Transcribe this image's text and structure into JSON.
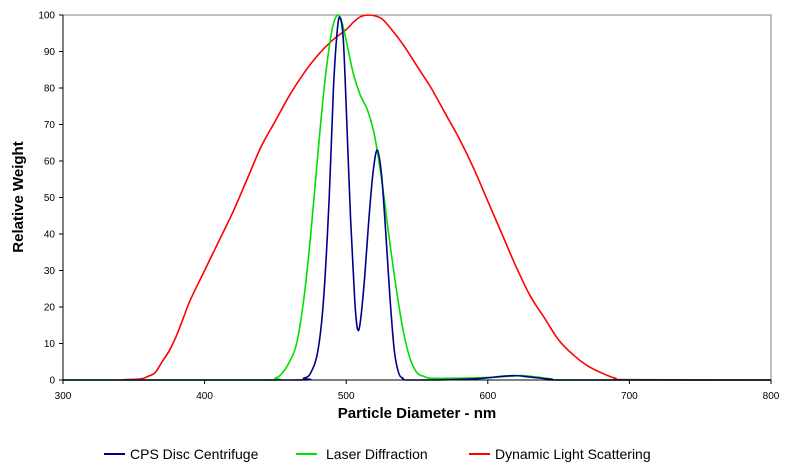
{
  "chart_data": {
    "type": "line",
    "title": "",
    "xlabel": "Particle Diameter - nm",
    "ylabel": "Relative Weight",
    "xlim": [
      300,
      800
    ],
    "ylim": [
      0,
      100
    ],
    "x_ticks": [
      300,
      400,
      500,
      600,
      700,
      800
    ],
    "y_ticks": [
      0,
      10,
      20,
      30,
      40,
      50,
      60,
      70,
      80,
      90,
      100
    ],
    "grid": false,
    "legend_position": "bottom",
    "series": [
      {
        "name": "CPS Disc Centrifuge",
        "color": "#00008b",
        "points": [
          [
            300,
            0
          ],
          [
            460,
            0
          ],
          [
            470,
            0.5
          ],
          [
            475,
            2
          ],
          [
            480,
            8
          ],
          [
            484,
            22
          ],
          [
            488,
            50
          ],
          [
            491,
            80
          ],
          [
            494,
            97
          ],
          [
            496,
            99
          ],
          [
            498,
            93
          ],
          [
            500,
            75
          ],
          [
            503,
            45
          ],
          [
            506,
            22
          ],
          [
            508,
            14
          ],
          [
            510,
            16
          ],
          [
            513,
            28
          ],
          [
            516,
            44
          ],
          [
            519,
            57
          ],
          [
            522,
            63
          ],
          [
            525,
            56
          ],
          [
            528,
            40
          ],
          [
            531,
            22
          ],
          [
            534,
            8
          ],
          [
            537,
            2
          ],
          [
            540,
            0.5
          ],
          [
            545,
            0
          ],
          [
            590,
            0.3
          ],
          [
            610,
            1
          ],
          [
            620,
            1.2
          ],
          [
            630,
            0.8
          ],
          [
            645,
            0.2
          ],
          [
            655,
            0
          ],
          [
            800,
            0
          ]
        ]
      },
      {
        "name": "Laser Diffraction",
        "color": "#00e000",
        "points": [
          [
            300,
            0
          ],
          [
            440,
            0
          ],
          [
            450,
            0.5
          ],
          [
            455,
            2
          ],
          [
            460,
            5
          ],
          [
            465,
            10
          ],
          [
            470,
            22
          ],
          [
            475,
            40
          ],
          [
            480,
            62
          ],
          [
            485,
            82
          ],
          [
            490,
            96
          ],
          [
            494,
            100
          ],
          [
            497,
            98
          ],
          [
            500,
            93
          ],
          [
            505,
            84
          ],
          [
            510,
            78
          ],
          [
            515,
            74
          ],
          [
            520,
            67
          ],
          [
            525,
            55
          ],
          [
            530,
            40
          ],
          [
            535,
            26
          ],
          [
            540,
            14
          ],
          [
            545,
            6
          ],
          [
            550,
            2
          ],
          [
            555,
            1
          ],
          [
            560,
            0.5
          ],
          [
            580,
            0.5
          ],
          [
            600,
            0.7
          ],
          [
            615,
            1
          ],
          [
            625,
            1.2
          ],
          [
            635,
            0.8
          ],
          [
            645,
            0.3
          ],
          [
            660,
            0
          ],
          [
            800,
            0
          ]
        ]
      },
      {
        "name": "Dynamic Light Scattering",
        "color": "#ff0000",
        "points": [
          [
            343,
            0.1
          ],
          [
            355,
            0.3
          ],
          [
            360,
            1
          ],
          [
            365,
            2
          ],
          [
            370,
            5
          ],
          [
            375,
            8
          ],
          [
            380,
            12
          ],
          [
            385,
            17
          ],
          [
            390,
            22
          ],
          [
            400,
            30
          ],
          [
            410,
            38
          ],
          [
            420,
            46
          ],
          [
            430,
            55
          ],
          [
            440,
            64
          ],
          [
            450,
            71
          ],
          [
            460,
            78
          ],
          [
            470,
            84
          ],
          [
            480,
            89
          ],
          [
            490,
            93
          ],
          [
            500,
            96
          ],
          [
            505,
            98
          ],
          [
            510,
            99.5
          ],
          [
            515,
            100
          ],
          [
            520,
            99.8
          ],
          [
            525,
            99
          ],
          [
            530,
            97
          ],
          [
            540,
            92
          ],
          [
            550,
            86
          ],
          [
            560,
            80
          ],
          [
            570,
            73
          ],
          [
            580,
            66
          ],
          [
            590,
            58
          ],
          [
            600,
            49
          ],
          [
            610,
            40
          ],
          [
            620,
            31
          ],
          [
            630,
            23
          ],
          [
            640,
            17
          ],
          [
            650,
            11
          ],
          [
            660,
            7
          ],
          [
            670,
            4
          ],
          [
            680,
            2
          ],
          [
            690,
            0.5
          ],
          [
            700,
            0.1
          ],
          [
            800,
            0
          ]
        ]
      }
    ]
  }
}
